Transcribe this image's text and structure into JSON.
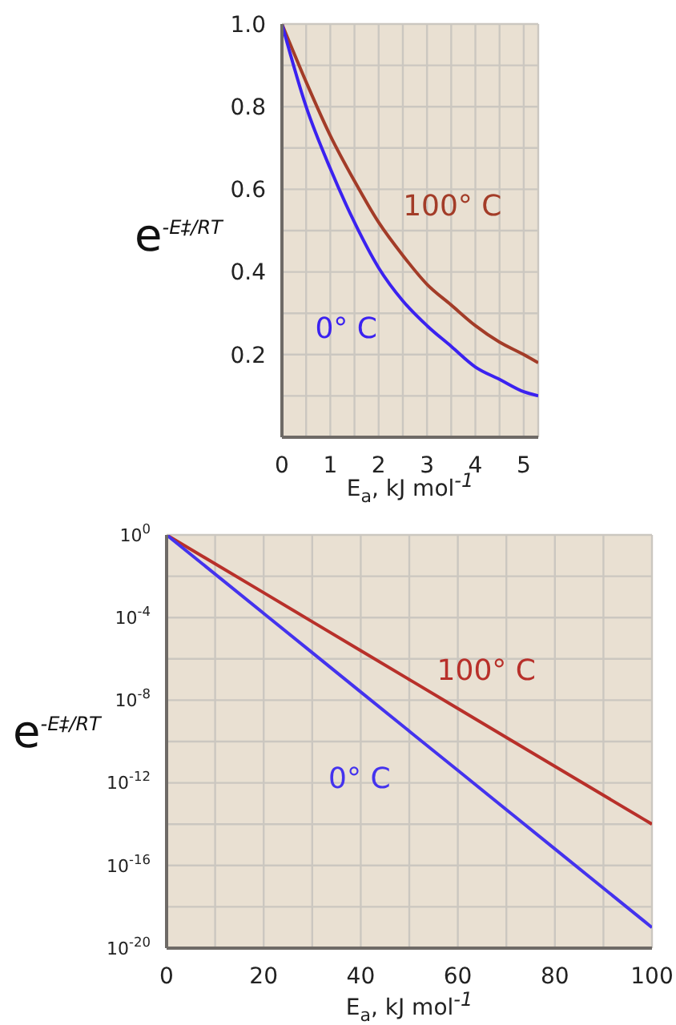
{
  "chart_data": [
    {
      "type": "line",
      "xlabel": "E$_{a}$, kJ mol$^{-1}$",
      "ylabel": "e$^{-E‡/RT}$",
      "x": [
        0,
        0.5,
        1,
        1.5,
        2,
        2.5,
        3,
        3.5,
        4,
        4.5,
        5,
        5.3
      ],
      "series": [
        {
          "name": "100° C",
          "color": "#a33c28",
          "values": [
            1,
            0.86,
            0.73,
            0.62,
            0.52,
            0.44,
            0.37,
            0.32,
            0.27,
            0.23,
            0.2,
            0.18
          ]
        },
        {
          "name": "0° C",
          "color": "#3b22f0",
          "values": [
            1,
            0.8,
            0.65,
            0.52,
            0.41,
            0.33,
            0.27,
            0.22,
            0.17,
            0.14,
            0.11,
            0.1
          ]
        }
      ],
      "xlim": [
        0,
        5.3
      ],
      "ylim": [
        0,
        1
      ],
      "xticks": [
        0,
        {
          "value": 0.5,
          "label": null
        },
        1,
        {
          "value": 1.5,
          "label": null
        },
        2,
        {
          "value": 2.5,
          "label": null
        },
        3,
        {
          "value": 3.5,
          "label": null
        },
        4,
        {
          "value": 4.5,
          "label": null
        },
        5
      ],
      "yticks": [
        {
          "value": 0,
          "label": null
        },
        {
          "value": 0.1,
          "label": null
        },
        0.2,
        {
          "value": 0.3,
          "label": null
        },
        0.4,
        {
          "value": 0.5,
          "label": null
        },
        0.6,
        {
          "value": 0.7,
          "label": null
        },
        0.8,
        {
          "value": 0.9,
          "label": null
        },
        {
          "value": 1,
          "label": "1.0"
        }
      ],
      "grid": true,
      "marker": "none"
    },
    {
      "type": "line",
      "xlabel": "E$_{a}$, kJ mol$^{-1}$",
      "ylabel": "e$^{-E‡/RT}$",
      "x": [
        0,
        20,
        40,
        60,
        80,
        100
      ],
      "series": [
        {
          "name": "100° C",
          "color": "#b8302a",
          "values": [
            1,
            0.0016,
            2.5e-06,
            4e-09,
            6.3e-12,
            1e-14
          ]
        },
        {
          "name": "0° C",
          "color": "#4433ee",
          "values": [
            1,
            0.00016,
            2.5e-08,
            4e-12,
            6.3e-16,
            1e-19
          ]
        }
      ],
      "xlim": [
        0,
        100
      ],
      "ylim": [
        1e-20,
        1
      ],
      "log": "y",
      "xticks": [
        0,
        {
          "value": 10,
          "label": null
        },
        20,
        {
          "value": 30,
          "label": null
        },
        40,
        {
          "value": 50,
          "label": null
        },
        60,
        {
          "value": 70,
          "label": null
        },
        80,
        {
          "value": 90,
          "label": null
        },
        100
      ],
      "yticks": [
        {
          "value": 1,
          "label": "10$^{0}$"
        },
        {
          "value": 0.01,
          "label": null
        },
        {
          "value": 0.0001,
          "label": "10$^{-4}$"
        },
        {
          "value": 1e-06,
          "label": null
        },
        {
          "value": 1e-08,
          "label": "10$^{-8}$"
        },
        {
          "value": 1e-10,
          "label": null
        },
        {
          "value": 1e-12,
          "label": "10$^{-12}$"
        },
        {
          "value": 1e-14,
          "label": null
        },
        {
          "value": 1e-16,
          "label": "10$^{-16}$"
        },
        {
          "value": 1e-18,
          "label": null
        },
        {
          "value": 1e-20,
          "label": "10$^{-20}$"
        }
      ],
      "grid": true,
      "marker": "none"
    }
  ]
}
